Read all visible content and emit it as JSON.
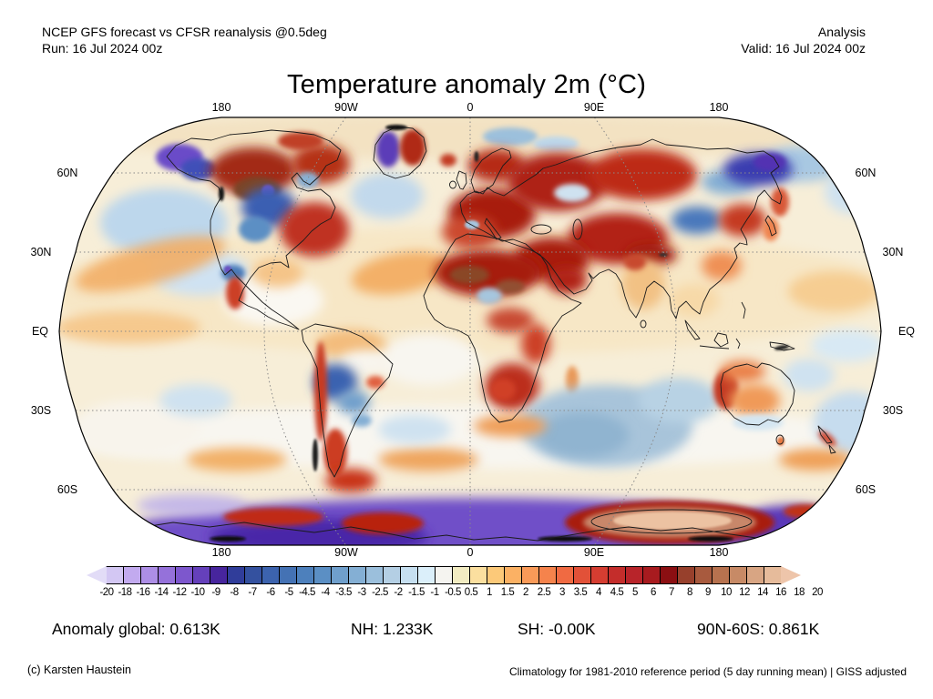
{
  "header": {
    "product": "NCEP GFS forecast vs CFSR reanalysis @0.5deg",
    "run": "Run: 16 Jul 2024 00z",
    "mode": "Analysis",
    "valid": "Valid: 16 Jul 2024 00z"
  },
  "title": "Temperature anomaly 2m (°C)",
  "map": {
    "lon_labels_top": [
      "180",
      "90W",
      "0",
      "90E",
      "180"
    ],
    "lon_labels_bottom": [
      "180",
      "90W",
      "0",
      "90E",
      "180"
    ],
    "lat_labels_left": [
      "60N",
      "30N",
      "EQ",
      "30S",
      "60S"
    ],
    "lat_labels_right": [
      "60N",
      "30N",
      "EQ",
      "30S",
      "60S"
    ]
  },
  "colorbar": {
    "ticks": [
      "-20",
      "-18",
      "-16",
      "-14",
      "-12",
      "-10",
      "-9",
      "-8",
      "-7",
      "-6",
      "-5",
      "-4.5",
      "-4",
      "-3.5",
      "-3",
      "-2.5",
      "-2",
      "-1.5",
      "-1",
      "-0.5",
      "0.5",
      "1",
      "1.5",
      "2",
      "2.5",
      "3",
      "3.5",
      "4",
      "4.5",
      "5",
      "6",
      "7",
      "8",
      "9",
      "10",
      "12",
      "14",
      "16",
      "18",
      "20"
    ],
    "colors": [
      "#e2dcf7",
      "#d3c7f3",
      "#c2aaef",
      "#ad8ee6",
      "#9571da",
      "#7d57cd",
      "#6540bb",
      "#47259d",
      "#303d9a",
      "#34519f",
      "#3c63ae",
      "#4472b4",
      "#4d80bc",
      "#5b8fc4",
      "#6f9fcc",
      "#84afd4",
      "#9bbfdc",
      "#b4cfe4",
      "#c6dff0",
      "#dbeffa",
      "#f5f4f0",
      "#f2ecc2",
      "#fbdf9f",
      "#fcc979",
      "#fbb164",
      "#f99a58",
      "#f5834c",
      "#f06a42",
      "#e25138",
      "#d53d31",
      "#c42d2b",
      "#b8242a",
      "#a81b1f",
      "#8b0f12",
      "#97402c",
      "#a85a3e",
      "#b7724f",
      "#c78a66",
      "#d8a583",
      "#e6bb9b",
      "#eec5aa"
    ]
  },
  "stats": {
    "global": "Anomaly global: 0.613K",
    "nh": "NH: 1.233K",
    "sh": "SH: -0.00K",
    "band": "90N-60S: 0.861K"
  },
  "footer": {
    "credit": "(c) Karsten Haustein",
    "climatology": "Climatology for 1981-2010 reference period (5 day running mean) | GISS adjusted"
  }
}
